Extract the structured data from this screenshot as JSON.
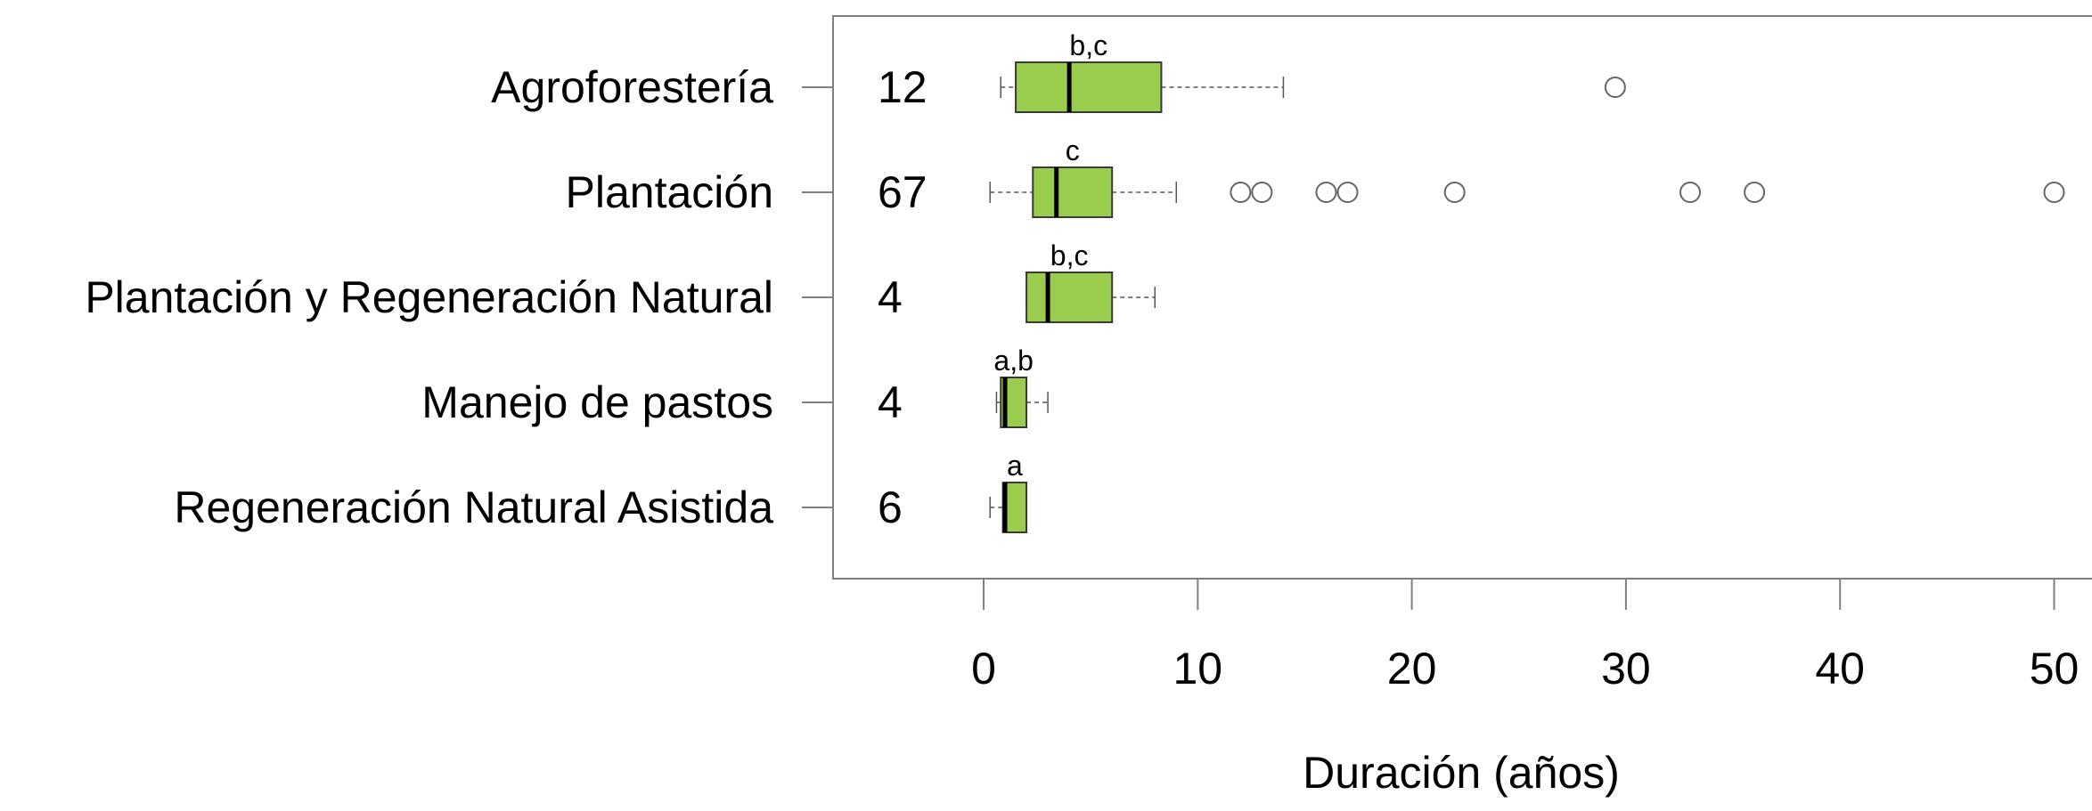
{
  "chart_data": {
    "type": "boxplot",
    "orientation": "horizontal",
    "xlabel": "Duración (años)",
    "xlim": [
      -7,
      52
    ],
    "xticks": [
      0,
      10,
      20,
      30,
      40,
      50
    ],
    "grid": false,
    "box_color": "#9ACD4D",
    "box_edge_color": "#3a3a3a",
    "series": [
      {
        "category": "Agroforestería",
        "n": "12",
        "letters": "b,c",
        "whisker_low": 0.8,
        "q1": 1.5,
        "median": 4,
        "q3": 8.3,
        "whisker_high": 14,
        "outliers": [
          29.5
        ]
      },
      {
        "category": "Plantación",
        "n": "67",
        "letters": "c",
        "whisker_low": 0.3,
        "q1": 2.3,
        "median": 3.4,
        "q3": 6,
        "whisker_high": 9,
        "outliers": [
          12,
          13,
          16,
          17,
          22,
          33,
          36,
          50
        ]
      },
      {
        "category": "Plantación y Regeneración Natural",
        "n": "4",
        "letters": "b,c",
        "whisker_low": 2,
        "q1": 2,
        "median": 3,
        "q3": 6,
        "whisker_high": 8,
        "outliers": []
      },
      {
        "category": "Manejo de pastos",
        "n": "4",
        "letters": "a,b",
        "whisker_low": 0.6,
        "q1": 0.8,
        "median": 1,
        "q3": 2,
        "whisker_high": 3,
        "outliers": []
      },
      {
        "category": "Regeneración Natural Asistida",
        "n": "6",
        "letters": "a",
        "whisker_low": 0.3,
        "q1": 0.9,
        "median": 1,
        "q3": 2,
        "whisker_high": 2,
        "outliers": []
      }
    ]
  }
}
